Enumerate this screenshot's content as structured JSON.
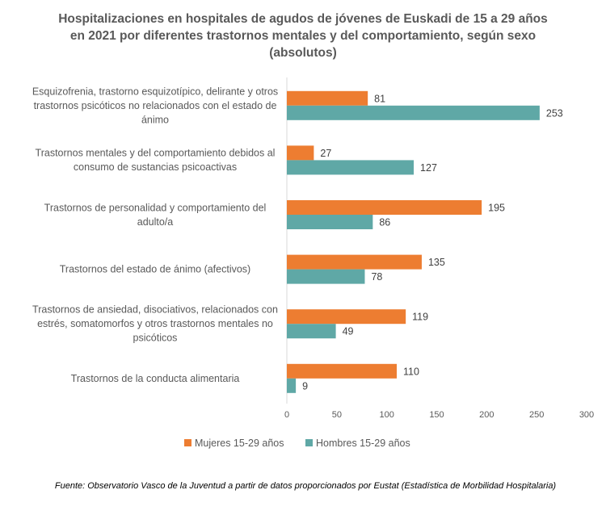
{
  "chart_data": {
    "type": "bar",
    "orientation": "horizontal",
    "title_lines": [
      "Hospitalizaciones en hospitales de agudos de jóvenes de Euskadi de 15 a 29 años",
      "en 2021 por diferentes trastornos mentales y del comportamiento, según sexo",
      "(absolutos)"
    ],
    "categories": [
      [
        "Esquizofrenia, trastorno esquizotípico, delirante y otros",
        "trastornos psicóticos no relacionados con el estado de",
        "ánimo"
      ],
      [
        "Trastornos mentales y del comportamiento debidos al",
        "consumo de sustancias psicoactivas"
      ],
      [
        "Trastornos de personalidad y comportamiento del",
        "adulto/a"
      ],
      [
        "Trastornos del estado de ánimo (afectivos)"
      ],
      [
        "Trastornos de ansiedad, disociativos, relacionados con",
        "estrés, somatomorfos y otros trastornos mentales no",
        "psicóticos"
      ],
      [
        "Trastornos de la conducta alimentaria"
      ]
    ],
    "series": [
      {
        "name": "Mujeres 15-29 años",
        "color": "#ED7D31",
        "values": [
          81,
          27,
          195,
          135,
          119,
          110
        ]
      },
      {
        "name": "Hombres 15-29 años",
        "color": "#5FA8A6",
        "values": [
          253,
          127,
          86,
          78,
          49,
          9
        ]
      }
    ],
    "xlim": [
      0,
      300
    ],
    "xticks": [
      "0",
      "50",
      "100",
      "150",
      "200",
      "250",
      "300"
    ],
    "grid": false,
    "legend_position": "bottom",
    "data_labels": true
  },
  "source": "Fuente: Observatorio Vasco de la Juventud a partir de datos proporcionados por Eustat (Estadística de Morbilidad Hospitalaria)"
}
